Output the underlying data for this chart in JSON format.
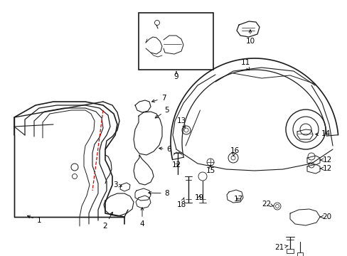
{
  "bg_color": "#ffffff",
  "line_color": "#1a1a1a",
  "red_color": "#dd0000",
  "fig_width": 4.89,
  "fig_height": 3.6,
  "dpi": 100
}
